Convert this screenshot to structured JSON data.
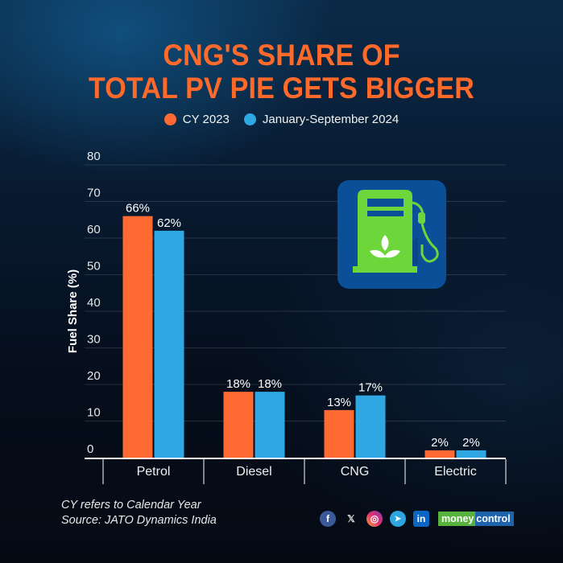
{
  "chart_data": {
    "type": "bar",
    "title": "CNG'S SHARE OF TOTAL PV PIE GETS BIGGER",
    "title_lines": [
      "CNG'S SHARE OF",
      "TOTAL PV PIE GETS BIGGER"
    ],
    "categories": [
      "Petrol",
      "Diesel",
      "CNG",
      "Electric"
    ],
    "series": [
      {
        "name": "CY 2023",
        "color": "#ff6a33",
        "values": [
          66,
          18,
          13,
          2
        ],
        "labels": [
          "66%",
          "18%",
          "13%",
          "2%"
        ]
      },
      {
        "name": "January-September 2024",
        "color": "#2ea7e3",
        "values": [
          62,
          18,
          17,
          2
        ],
        "labels": [
          "62%",
          "18%",
          "17%",
          "2%"
        ]
      }
    ],
    "xlabel": "",
    "ylabel": "Fuel Share (%)",
    "ylim": [
      0,
      80
    ],
    "yticks": [
      0,
      10,
      20,
      30,
      40,
      50,
      60,
      70,
      80
    ],
    "grid": true,
    "legend_position": "top-center"
  },
  "footnotes": [
    "CY refers to Calendar Year",
    "Source: JATO Dynamics India"
  ],
  "social": {
    "icons": [
      {
        "name": "facebook",
        "glyph": "f",
        "color": "#3b5998"
      },
      {
        "name": "x",
        "glyph": "𝕏",
        "color": "transparent"
      },
      {
        "name": "instagram",
        "glyph": "◎",
        "color": "#e1306c"
      },
      {
        "name": "telegram",
        "glyph": "➤",
        "color": "#2ca5e0"
      },
      {
        "name": "linkedin",
        "glyph": "in",
        "color": "#0a66c2"
      }
    ],
    "brand_part1": "money",
    "brand_part2": "control"
  },
  "colors": {
    "title": "#ff6a2b",
    "background": "#071628"
  }
}
